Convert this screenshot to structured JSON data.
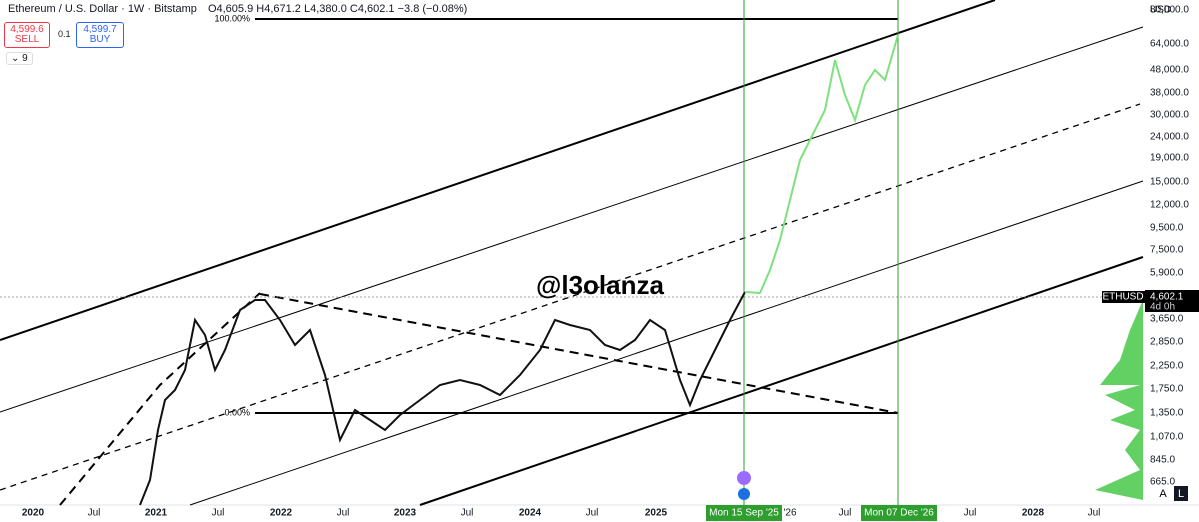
{
  "header": {
    "title": "Ethereum / U.S. Dollar · 1W · Bitstamp",
    "open": "O4,605.9",
    "high": "H4,671.2",
    "low": "L4,380.0",
    "close": "C4,602.1",
    "change": "−3.8 (−0.08%)",
    "sell_price": "4,599.6",
    "sell_label": "SELL",
    "spread": "0.1",
    "buy_price": "4,599.7",
    "buy_label": "BUY",
    "indicators_count": "9"
  },
  "watermark": "@l3olanza",
  "fib_labels": {
    "top": "100.00%",
    "bottom": "0.00%"
  },
  "price_axis": {
    "currency": "USD",
    "labels": [
      "80,000.0",
      "64,000.0",
      "48,000.0",
      "38,000.0",
      "30,000.0",
      "24,000.0",
      "19,000.0",
      "15,000.0",
      "12,000.0",
      "9,500.0",
      "7,500.0",
      "5,900.0",
      "3,650.0",
      "2,850.0",
      "2,250.0",
      "1,750.0",
      "1,350.0",
      "1,070.0",
      "845.0",
      "665.0"
    ],
    "symbol": "ETHUSD",
    "last_price": "4,602.1",
    "countdown": "4d 0h",
    "buttons": [
      "A",
      "L"
    ]
  },
  "time_axis": {
    "labels": [
      "2020",
      "Jul",
      "2021",
      "Jul",
      "2022",
      "Jul",
      "2023",
      "Jul",
      "2024",
      "Jul",
      "2025",
      "'26",
      "Jul",
      "Jul",
      "2028",
      "Jul"
    ],
    "markers": [
      "Mon 15 Sep '25",
      "Mon 07 Dec '26"
    ]
  }
}
